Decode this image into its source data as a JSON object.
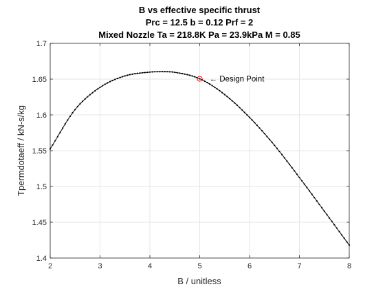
{
  "chart_data": {
    "type": "line",
    "title": [
      "B vs effective specific thrust",
      "Prc = 12.5 b = 0.12 Prf = 2",
      "Mixed Nozzle Ta = 218.8K Pa = 23.9kPa M = 0.85"
    ],
    "xlabel": "B / unitless",
    "ylabel": "Tpermdotaeff / kN-s/kg",
    "xlim": [
      2,
      8
    ],
    "ylim": [
      1.4,
      1.7
    ],
    "xticks": [
      2,
      3,
      4,
      5,
      6,
      7,
      8
    ],
    "yticks": [
      1.4,
      1.45,
      1.5,
      1.55,
      1.6,
      1.65,
      1.7
    ],
    "grid": true,
    "series": [
      {
        "color": "#000000",
        "marker": "dot",
        "x": [
          2.0,
          2.5,
          3.0,
          3.5,
          4.0,
          4.25,
          4.5,
          5.0,
          5.5,
          6.0,
          6.5,
          7.0,
          7.5,
          8.0
        ],
        "y": [
          1.5525,
          1.6075,
          1.6385,
          1.6545,
          1.6598,
          1.6605,
          1.6595,
          1.6505,
          1.6285,
          1.5965,
          1.5575,
          1.5125,
          1.4655,
          1.418
        ]
      }
    ],
    "design_point": {
      "x": 5.0,
      "y": 1.6505,
      "color": "#ff0000",
      "label": "← Design Point"
    }
  }
}
